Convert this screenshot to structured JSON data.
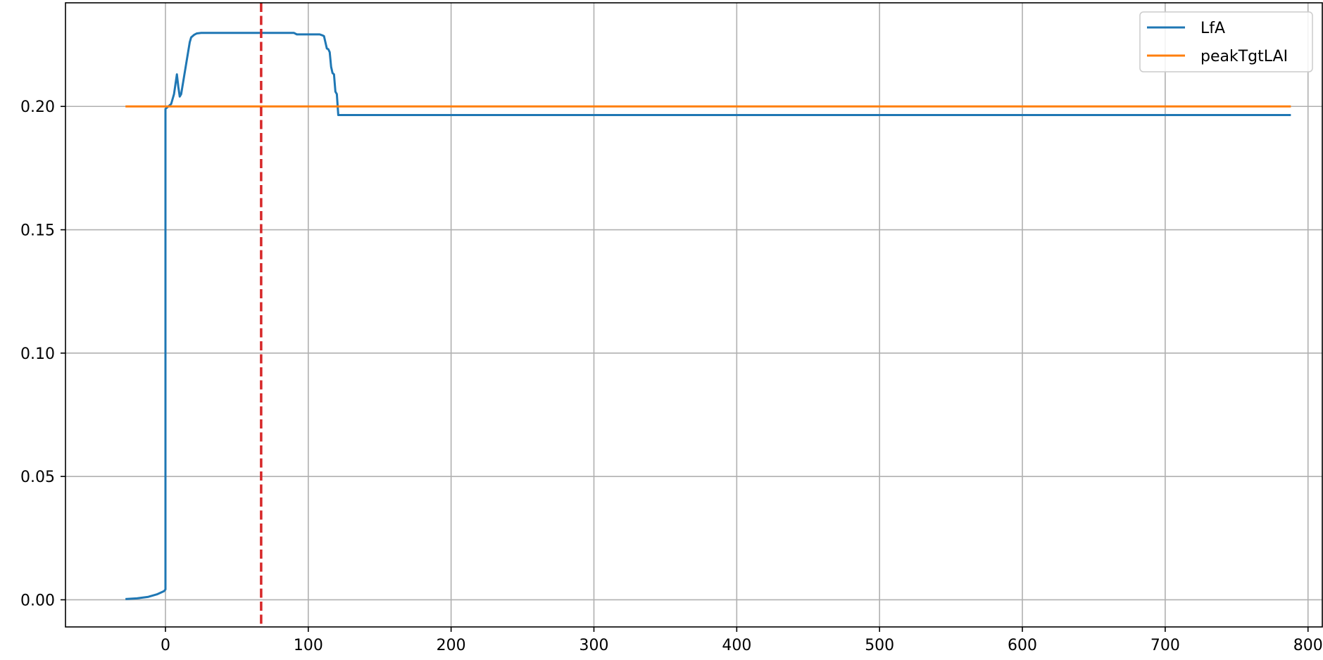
{
  "chart_data": {
    "type": "line",
    "title": "",
    "xlabel": "",
    "ylabel": "",
    "xlim": [
      -70,
      810
    ],
    "ylim": [
      -0.011,
      0.242
    ],
    "xticks": [
      0,
      100,
      200,
      300,
      400,
      500,
      600,
      700,
      800
    ],
    "xtick_labels": [
      "0",
      "100",
      "200",
      "300",
      "400",
      "500",
      "600",
      "700",
      "800"
    ],
    "yticks": [
      0.0,
      0.05,
      0.1,
      0.15,
      0.2
    ],
    "ytick_labels": [
      "0.00",
      "0.05",
      "0.10",
      "0.15",
      "0.20"
    ],
    "grid": true,
    "legend_position": "top-right",
    "series": [
      {
        "name": "LfA",
        "color": "#1f77b4",
        "points": [
          [
            -28,
            0.0003
          ],
          [
            -20,
            0.0006
          ],
          [
            -12,
            0.0012
          ],
          [
            -6,
            0.0022
          ],
          [
            -1,
            0.0035
          ],
          [
            0,
            0.0042
          ],
          [
            0,
            0.199
          ],
          [
            2,
            0.2
          ],
          [
            4,
            0.201
          ],
          [
            6,
            0.205
          ],
          [
            8,
            0.213
          ],
          [
            9,
            0.208
          ],
          [
            10,
            0.204
          ],
          [
            11,
            0.205
          ],
          [
            13,
            0.212
          ],
          [
            15,
            0.219
          ],
          [
            17,
            0.226
          ],
          [
            18,
            0.228
          ],
          [
            20,
            0.229
          ],
          [
            22,
            0.2296
          ],
          [
            25,
            0.2298
          ],
          [
            90,
            0.2298
          ],
          [
            92,
            0.2292
          ],
          [
            108,
            0.2292
          ],
          [
            110,
            0.2288
          ],
          [
            111,
            0.2285
          ],
          [
            112,
            0.226
          ],
          [
            113,
            0.2235
          ],
          [
            114,
            0.2232
          ],
          [
            115,
            0.222
          ],
          [
            116,
            0.216
          ],
          [
            117,
            0.2135
          ],
          [
            118,
            0.213
          ],
          [
            119,
            0.206
          ],
          [
            120,
            0.205
          ],
          [
            121,
            0.1965
          ],
          [
            788,
            0.1965
          ]
        ]
      },
      {
        "name": "peakTgtLAI",
        "color": "#ff7f0e",
        "points": [
          [
            -28,
            0.2
          ],
          [
            788,
            0.2
          ]
        ]
      }
    ],
    "vlines": [
      {
        "x": 67,
        "color": "#d62728",
        "style": "dashed"
      }
    ]
  }
}
